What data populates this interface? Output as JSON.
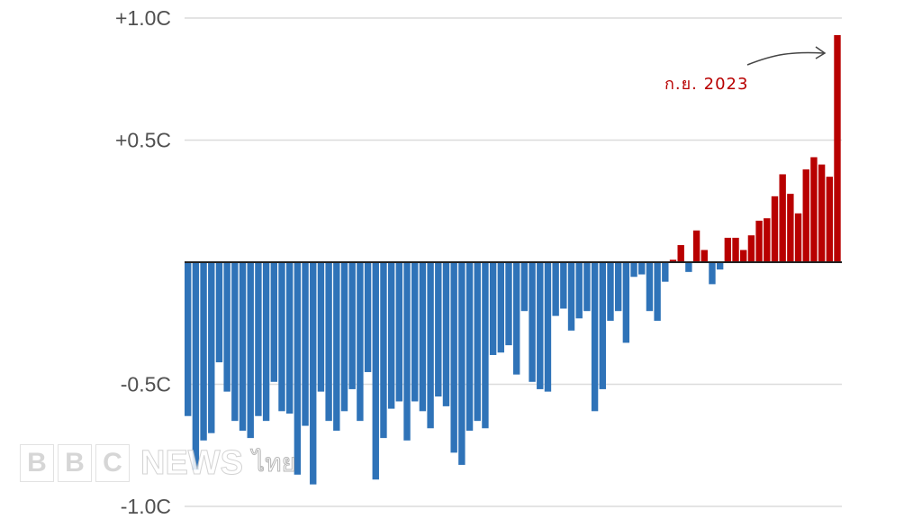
{
  "chart_data": {
    "type": "bar",
    "title": "",
    "xlabel": "",
    "ylabel": "",
    "ylim": [
      -1.0,
      1.0
    ],
    "yticks": [
      {
        "value": 1.0,
        "label": "+1.0C"
      },
      {
        "value": 0.5,
        "label": "+0.5C"
      },
      {
        "value": -0.5,
        "label": "-0.5C"
      },
      {
        "value": -1.0,
        "label": "-1.0C"
      }
    ],
    "grid": true,
    "colors": {
      "positive": "#b80000",
      "negative": "#2f73b8",
      "grid": "#dcdcdc",
      "baseline": "#222222"
    },
    "values": [
      -0.63,
      -0.85,
      -0.73,
      -0.7,
      -0.41,
      -0.53,
      -0.65,
      -0.69,
      -0.72,
      -0.63,
      -0.65,
      -0.49,
      -0.61,
      -0.62,
      -0.87,
      -0.67,
      -0.91,
      -0.53,
      -0.65,
      -0.69,
      -0.61,
      -0.52,
      -0.65,
      -0.45,
      -0.89,
      -0.72,
      -0.6,
      -0.57,
      -0.73,
      -0.57,
      -0.61,
      -0.68,
      -0.55,
      -0.59,
      -0.78,
      -0.83,
      -0.69,
      -0.65,
      -0.68,
      -0.38,
      -0.37,
      -0.34,
      -0.46,
      -0.2,
      -0.49,
      -0.52,
      -0.53,
      -0.22,
      -0.19,
      -0.28,
      -0.23,
      -0.2,
      -0.61,
      -0.52,
      -0.24,
      -0.2,
      -0.33,
      -0.06,
      -0.05,
      -0.2,
      -0.24,
      -0.08,
      0.01,
      0.07,
      -0.04,
      0.13,
      0.05,
      -0.09,
      -0.03,
      0.1,
      0.1,
      0.05,
      0.11,
      0.17,
      0.18,
      0.27,
      0.36,
      0.28,
      0.2,
      0.38,
      0.43,
      0.4,
      0.35,
      0.93
    ],
    "annotation": {
      "text": "ก.ย. 2023",
      "points_to": "last bar"
    }
  },
  "logo": {
    "text": "BBC NEWS ไทย",
    "letters": [
      "B",
      "B",
      "C"
    ],
    "news": "NEWS",
    "thai": "ไทย"
  }
}
